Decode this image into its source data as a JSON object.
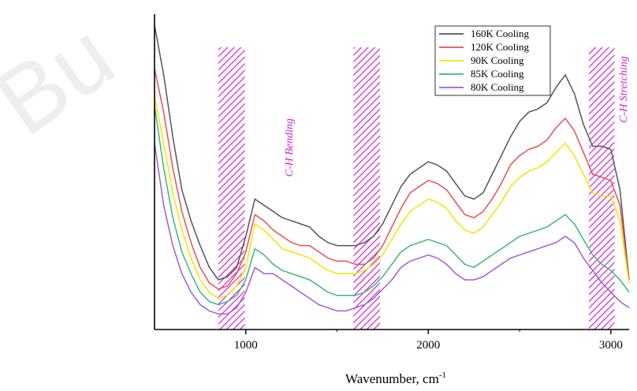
{
  "watermark": "Bu",
  "chart_data": {
    "type": "line",
    "title": "",
    "xlabel": "Wavenumber, cm",
    "xlabel_sup": "-1",
    "ylabel": "",
    "xlim": [
      500,
      3100
    ],
    "ylim": [
      0,
      100
    ],
    "xticks": [
      1000,
      2000,
      3000
    ],
    "tick_labels": [
      "1000",
      "2000",
      "3000"
    ],
    "grid": false,
    "legend_position": "top-right",
    "bands": [
      {
        "x0": 850,
        "x1": 995,
        "color": "#d41fd4"
      },
      {
        "x0": 1590,
        "x1": 1735,
        "color": "#d41fd4"
      },
      {
        "x0": 2880,
        "x1": 3020,
        "color": "#d41fd4"
      }
    ],
    "annotations": [
      {
        "text": "C-H Bending",
        "x": 1255,
        "y": 68,
        "color": "#d41fd4"
      },
      {
        "text": "C-H Stretching",
        "x": 3088,
        "y": 88,
        "color": "#d41fd4"
      }
    ],
    "x": [
      500,
      550,
      600,
      650,
      700,
      750,
      800,
      850,
      900,
      950,
      1000,
      1050,
      1100,
      1150,
      1200,
      1250,
      1300,
      1350,
      1400,
      1450,
      1500,
      1550,
      1600,
      1650,
      1700,
      1750,
      1800,
      1850,
      1900,
      1950,
      2000,
      2050,
      2100,
      2150,
      2200,
      2250,
      2300,
      2350,
      2400,
      2450,
      2500,
      2550,
      2600,
      2650,
      2700,
      2750,
      2800,
      2850,
      2900,
      2950,
      3000,
      3050,
      3100
    ],
    "series": [
      {
        "name": "160K Cooling",
        "color": "#555555",
        "values": [
          98,
          82,
          62,
          45,
          35,
          27,
          20,
          16,
          17,
          20,
          30,
          42,
          40,
          38,
          36,
          35,
          34,
          33,
          30,
          28,
          27,
          27,
          27,
          28,
          30,
          34,
          40,
          46,
          50,
          52,
          54,
          53,
          51,
          47,
          43,
          42,
          44,
          50,
          56,
          62,
          67,
          70,
          71,
          73,
          78,
          82,
          76,
          66,
          59,
          59,
          58,
          45,
          16
        ]
      },
      {
        "name": "120K Cooling",
        "color": "#e85050",
        "values": [
          84,
          70,
          52,
          38,
          28,
          20,
          15,
          13,
          14,
          18,
          25,
          37,
          35,
          32,
          30,
          28,
          27,
          27,
          25,
          23,
          22,
          22,
          21,
          21,
          23,
          27,
          33,
          39,
          44,
          46,
          48,
          47,
          45,
          41,
          37,
          36,
          38,
          42,
          47,
          53,
          56,
          58,
          59,
          61,
          65,
          68,
          64,
          57,
          50,
          49,
          48,
          40,
          16
        ]
      },
      {
        "name": "90K Cooling",
        "color": "#f2e600",
        "values": [
          75,
          60,
          44,
          32,
          23,
          16,
          12,
          10,
          11,
          14,
          20,
          34,
          32,
          29,
          26,
          25,
          24,
          23,
          21,
          19,
          18,
          18,
          18,
          19,
          21,
          24,
          29,
          34,
          38,
          40,
          42,
          41,
          39,
          35,
          32,
          31,
          33,
          37,
          41,
          46,
          49,
          51,
          52,
          54,
          57,
          60,
          56,
          50,
          44,
          43,
          43,
          35,
          15
        ]
      },
      {
        "name": "85K Cooling",
        "color": "#3cb878",
        "values": [
          72,
          52,
          36,
          25,
          18,
          12,
          9,
          8,
          9,
          11,
          16,
          26,
          24,
          21,
          19,
          18,
          17,
          16,
          14,
          12,
          11,
          11,
          11,
          12,
          14,
          17,
          21,
          25,
          27,
          28,
          29,
          28,
          27,
          24,
          21,
          20,
          22,
          24,
          26,
          28,
          30,
          31,
          32,
          33,
          35,
          37,
          34,
          29,
          24,
          21,
          19,
          16,
          12
        ]
      },
      {
        "name": "80K Cooling",
        "color": "#a35cd6",
        "values": [
          60,
          40,
          27,
          18,
          12,
          8,
          6,
          5,
          5,
          7,
          12,
          20,
          18,
          18,
          16,
          14,
          12,
          10,
          8,
          7,
          6,
          6,
          7,
          8,
          10,
          13,
          16,
          20,
          22,
          23,
          24,
          23,
          21,
          18,
          16,
          16,
          17,
          19,
          21,
          23,
          24,
          25,
          26,
          27,
          28,
          30,
          28,
          23,
          19,
          15,
          12,
          9,
          7
        ]
      }
    ]
  }
}
